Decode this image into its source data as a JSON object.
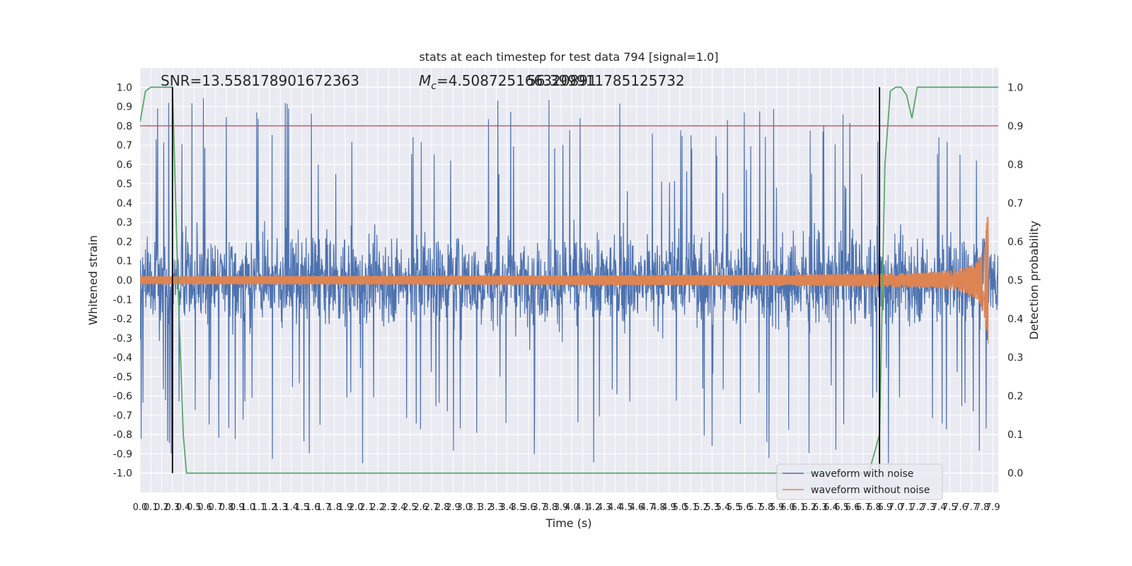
{
  "chart_data": {
    "type": "line",
    "title": "stats at each timestep for test data 794 [signal=1.0]",
    "xlabel": "Time (s)",
    "ylabel": "Whitened strain",
    "ylabel_right": "Detection probability",
    "xlim": [
      0.0,
      7.95
    ],
    "ylim": [
      -1.1,
      1.1
    ],
    "ylim_right": [
      -0.05,
      1.05
    ],
    "x_ticks": [
      "0.0",
      "0.1",
      "0.2",
      "0.3",
      "0.4",
      "0.5",
      "0.6",
      "0.7",
      "0.8",
      "0.9",
      "1.0",
      "1.1",
      "1.2",
      "1.3",
      "1.4",
      "1.5",
      "1.6",
      "1.7",
      "1.8",
      "1.9",
      "2.0",
      "2.1",
      "2.2",
      "2.3",
      "2.4",
      "2.5",
      "2.6",
      "2.7",
      "2.8",
      "2.9",
      "3.0",
      "3.1",
      "3.2",
      "3.3",
      "3.4",
      "3.5",
      "3.6",
      "3.7",
      "3.8",
      "3.9",
      "4.0",
      "4.1",
      "4.2",
      "4.3",
      "4.4",
      "4.5",
      "4.6",
      "4.7",
      "4.8",
      "4.9",
      "5.0",
      "5.1",
      "5.2",
      "5.3",
      "5.4",
      "5.5",
      "5.6",
      "5.7",
      "5.8",
      "5.9",
      "6.0",
      "6.1",
      "6.2",
      "6.3",
      "6.4",
      "6.5",
      "6.6",
      "6.7",
      "6.8",
      "6.9",
      "7.0",
      "7.1",
      "7.2",
      "7.3",
      "7.4",
      "7.5",
      "7.6",
      "7.7",
      "7.8",
      "7.9"
    ],
    "y_ticks": [
      "1.0",
      "0.9",
      "0.8",
      "0.7",
      "0.6",
      "0.5",
      "0.4",
      "0.3",
      "0.2",
      "0.1",
      "0.0",
      "-0.1",
      "-0.2",
      "-0.3",
      "-0.4",
      "-0.5",
      "-0.6",
      "-0.7",
      "-0.8",
      "-0.9",
      "-1.0"
    ],
    "y_ticks_right": [
      "1.0",
      "0.9",
      "0.8",
      "0.7",
      "0.6",
      "0.5",
      "0.4",
      "0.3",
      "0.2",
      "0.1",
      "0.0"
    ],
    "grid": true,
    "legend_position": "lower-right",
    "annotations": {
      "snr": "SNR=13.558178901672363",
      "mc_symbol": "M",
      "mc_sub": "c",
      "mc_value": "=4.508725166320891",
      "extra": "56.399911785125732"
    },
    "series": [
      {
        "name": "waveform with noise",
        "color": "#4c72b0",
        "description": "noisy whitened strain, fills roughly -0.45..0.45 with spikes up to +/-1.0"
      },
      {
        "name": "waveform without noise",
        "color": "#dd8452",
        "description": "chirp signal, amplitude ~0.02 at start growing to ~0.33 near t=7.8s, ending near t=7.85s"
      },
      {
        "name": "detection probability",
        "color": "#55a868",
        "axis": "right",
        "x": [
          0.0,
          0.05,
          0.1,
          0.15,
          0.2,
          0.25,
          0.3,
          0.35,
          0.4,
          0.43,
          0.5,
          6.7,
          6.75,
          6.8,
          6.85,
          6.9,
          6.95,
          7.0,
          7.05,
          7.1,
          7.15,
          7.2,
          7.25,
          7.3,
          7.35,
          7.95
        ],
        "y": [
          0.91,
          0.99,
          1.0,
          1.0,
          1.0,
          1.0,
          1.0,
          0.5,
          0.1,
          0.0,
          0.0,
          0.0,
          0.0,
          0.05,
          0.1,
          0.8,
          0.99,
          1.0,
          1.0,
          0.98,
          0.92,
          1.0,
          1.0,
          1.0,
          1.0,
          1.0
        ]
      }
    ],
    "threshold": {
      "value": 0.9,
      "axis": "right",
      "color": "#c44e52"
    },
    "vlines": [
      {
        "x": 0.3,
        "ymin": 0.0,
        "ymax": 1.0,
        "color": "#000000"
      },
      {
        "x": 6.85,
        "ymin": 0.0,
        "ymax": 1.0,
        "color": "#000000"
      }
    ],
    "colors": {
      "background": "#eaeaf2",
      "grid": "#ffffff",
      "text": "#262626"
    }
  }
}
